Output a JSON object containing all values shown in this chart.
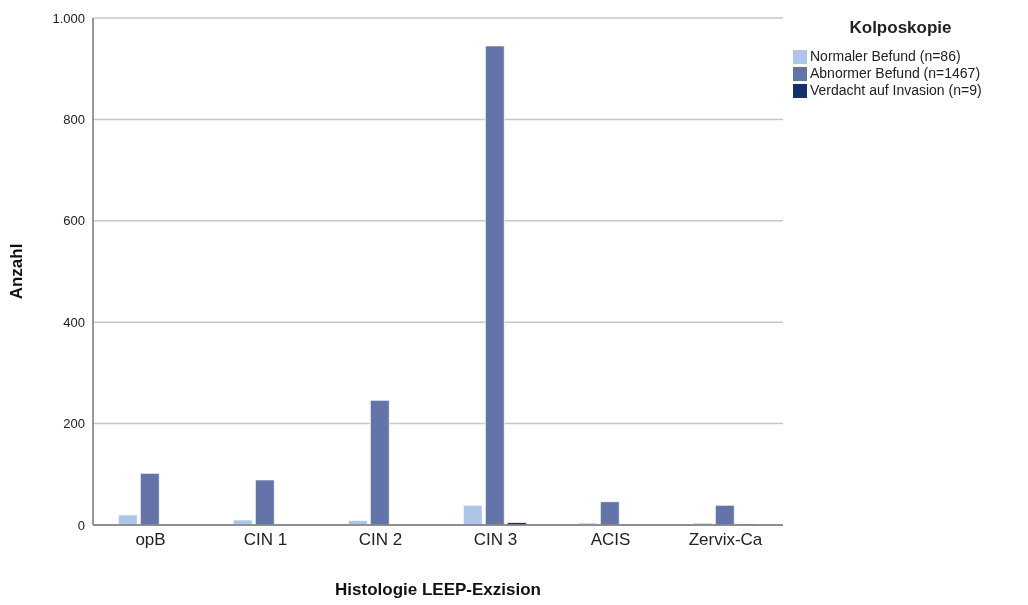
{
  "chart_data": {
    "type": "bar",
    "xlabel": "Histologie LEEP-Exzision",
    "ylabel": "Anzahl",
    "legend_title": "Kolposkopie",
    "categories": [
      "opB",
      "CIN 1",
      "CIN 2",
      "CIN 3",
      "ACIS",
      "Zervix-Ca"
    ],
    "series": [
      {
        "name": "Normaler Befund (n=86)",
        "color": "#adc6e8",
        "values": [
          20,
          10,
          9,
          39,
          4,
          4
        ]
      },
      {
        "name": "Abnormer Befund (n=1467)",
        "color": "#6274a8",
        "values": [
          102,
          89,
          246,
          945,
          46,
          39
        ]
      },
      {
        "name": "Verdacht auf Invasion (n=9)",
        "color": "#142e6e",
        "values": [
          0,
          null,
          0,
          5,
          null,
          2
        ]
      }
    ],
    "ylim": [
      0,
      1000
    ],
    "yticks": [
      0,
      200,
      400,
      600,
      800,
      {
        "value": 1000,
        "label": "1.000"
      }
    ],
    "grid": "y",
    "legend": "top right"
  }
}
